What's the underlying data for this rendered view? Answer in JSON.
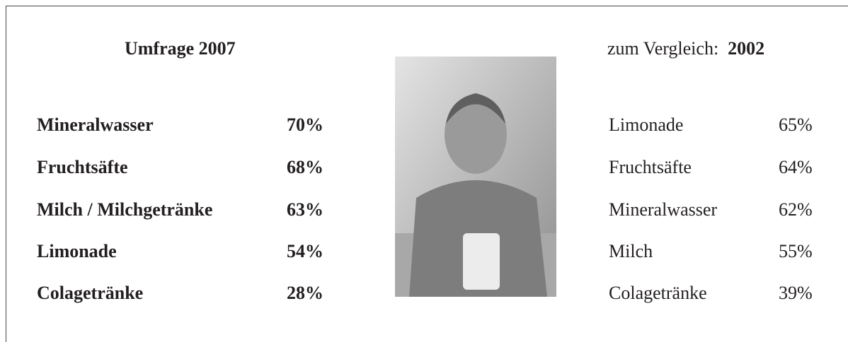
{
  "left": {
    "title": "Umfrage 2007",
    "rows": [
      [
        "Mineralwasser",
        "70%"
      ],
      [
        "Fruchtsäfte",
        "68%"
      ],
      [
        "Milch / Milchgetränke",
        "63%"
      ],
      [
        "Limonade",
        "54%"
      ],
      [
        "Colagetränke",
        "28%"
      ]
    ]
  },
  "right": {
    "title_prefix": "zum Vergleich:",
    "title_year": "2002",
    "rows": [
      [
        "Limonade",
        "65%"
      ],
      [
        "Fruchtsäfte",
        "64%"
      ],
      [
        "Mineralwasser",
        "62%"
      ],
      [
        "Milch",
        "55%"
      ],
      [
        "Colagetränke",
        "39%"
      ]
    ]
  }
}
